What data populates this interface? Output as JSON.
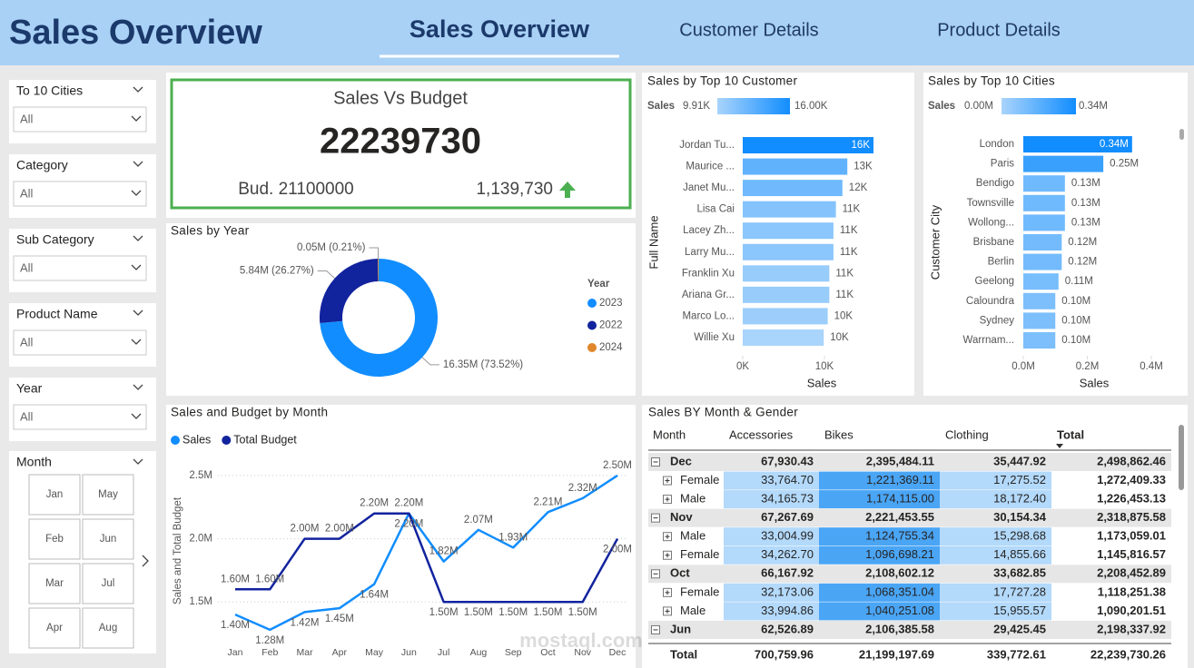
{
  "header": {
    "title": "Sales Overview",
    "tabs": [
      "Sales Overview",
      "Customer Details",
      "Product Details"
    ],
    "active_tab": 0
  },
  "slicers": [
    {
      "label": "To 10 Cities",
      "value": "All"
    },
    {
      "label": "Category",
      "value": "All"
    },
    {
      "label": "Sub Category",
      "value": "All"
    },
    {
      "label": "Product Name",
      "value": "All"
    },
    {
      "label": "Year",
      "value": "All"
    }
  ],
  "month_slicer": {
    "label": "Month",
    "options": [
      "Jan",
      "May",
      "Feb",
      "Jun",
      "Mar",
      "Jul",
      "Apr",
      "Aug"
    ]
  },
  "card": {
    "title": "Sales Vs Budget",
    "value": 22239730,
    "budget": "Bud. 21100000",
    "variance": "1,139,730"
  },
  "chart_data": [
    {
      "type": "donut",
      "title": "Sales by Year",
      "legend_title": "Year",
      "categories": [
        "2023",
        "2022",
        "2024"
      ],
      "values": [
        16.35,
        5.84,
        0.05
      ],
      "value_labels": [
        "16.35M (73.52%)",
        "5.84M (26.27%)",
        "0.05M (0.21%)"
      ],
      "colors": [
        "#118dff",
        "#12239e",
        "#e0862b"
      ]
    },
    {
      "type": "bar",
      "orientation": "horizontal",
      "title": "Sales by Top 10 Customer",
      "x_label": "Sales",
      "y_label": "Full Name",
      "categories": [
        "Jordan Tu...",
        "Maurice ...",
        "Janet Mu...",
        "Lisa Cai",
        "Lacey Zh...",
        "Larry Mu...",
        "Franklin Xu",
        "Ariana Gr...",
        "Marco Lo...",
        "Willie Xu"
      ],
      "values": [
        16.0,
        12.8,
        12.2,
        11.4,
        11.1,
        11.1,
        10.6,
        10.6,
        10.4,
        9.91
      ],
      "value_labels": [
        "16K",
        "13K",
        "12K",
        "11K",
        "11K",
        "11K",
        "11K",
        "11K",
        "10K",
        "10K"
      ],
      "xlim": [
        0,
        18
      ],
      "xticks": [
        {
          "value": 0,
          "label": "0K"
        },
        {
          "value": 10,
          "label": "10K"
        }
      ],
      "color_scale": {
        "title": "Sales",
        "min": {
          "value": 9.91,
          "label": "9.91K"
        },
        "max": {
          "value": 16,
          "label": "16.00K"
        },
        "colors": [
          "#a9d4fb",
          "#118dff"
        ]
      }
    },
    {
      "type": "bar",
      "orientation": "horizontal",
      "title": "Sales by Top 10 Cities",
      "x_label": "Sales",
      "y_label": "Customer City",
      "categories": [
        "London",
        "Paris",
        "Bendigo",
        "Townsville",
        "Wollong...",
        "Brisbane",
        "Berlin",
        "Geelong",
        "Caloundra",
        "Sydney",
        "Warrnam..."
      ],
      "values": [
        0.34,
        0.25,
        0.13,
        0.13,
        0.13,
        0.12,
        0.12,
        0.11,
        0.1,
        0.1,
        0.1
      ],
      "value_labels": [
        "0.34M",
        "0.25M",
        "0.13M",
        "0.13M",
        "0.13M",
        "0.12M",
        "0.12M",
        "0.11M",
        "0.10M",
        "0.10M",
        "0.10M"
      ],
      "xlim": [
        0,
        0.4
      ],
      "xticks": [
        {
          "value": 0,
          "label": "0.0M"
        },
        {
          "value": 0.2,
          "label": "0.2M"
        },
        {
          "value": 0.4,
          "label": "0.4M"
        }
      ],
      "color_scale": {
        "title": "Sales",
        "min": {
          "value": 0,
          "label": "0.00M"
        },
        "max": {
          "value": 0.34,
          "label": "0.34M"
        },
        "colors": [
          "#a9d4fb",
          "#118dff"
        ]
      }
    },
    {
      "type": "line",
      "title": "Sales and Budget by Month",
      "y_label": "Sales and Total Budget",
      "categories": [
        "Jan",
        "Feb",
        "Mar",
        "Apr",
        "May",
        "Jun",
        "Jul",
        "Aug",
        "Sep",
        "Oct",
        "Nov",
        "Dec"
      ],
      "series": [
        {
          "name": "Sales",
          "color": "#118dff",
          "values": [
            1.4,
            1.28,
            1.42,
            1.45,
            1.64,
            2.2,
            1.82,
            2.07,
            1.93,
            2.21,
            2.32,
            2.5
          ],
          "value_labels": [
            "1.40M",
            "1.28M",
            "1.42M",
            "1.45M",
            "1.64M",
            "2.20M",
            "1.82M",
            "2.07M",
            "1.93M",
            "2.21M",
            "2.32M",
            "2.50M"
          ]
        },
        {
          "name": "Total Budget",
          "color": "#12239e",
          "values": [
            1.6,
            1.6,
            2.0,
            2.0,
            2.2,
            2.2,
            1.5,
            1.5,
            1.5,
            1.5,
            1.5,
            2.0
          ],
          "value_labels": [
            "1.60M",
            "1.60M",
            "2.00M",
            "2.00M",
            "2.20M",
            "2.20M",
            "1.50M",
            "1.50M",
            "1.50M",
            "1.50M",
            "1.50M",
            "2.00M"
          ]
        }
      ],
      "ylim": [
        1.2,
        2.6
      ],
      "yticks": [
        {
          "value": 1.5,
          "label": "1.5M"
        },
        {
          "value": 2.0,
          "label": "2.0M"
        },
        {
          "value": 2.5,
          "label": "2.5M"
        }
      ],
      "grid": true
    }
  ],
  "matrix": {
    "title": "Sales BY Month & Gender",
    "columns": [
      "Month",
      "Accessories",
      "Bikes",
      "Clothing",
      "Total"
    ],
    "rows": [
      {
        "label": "Dec",
        "cells": [
          "67,930.43",
          "2,395,484.11",
          "35,447.92",
          "2,498,862.46"
        ],
        "children": [
          {
            "label": "Female",
            "cells": [
              "33,764.70",
              "1,221,369.11",
              "17,275.52",
              "1,272,409.33"
            ]
          },
          {
            "label": "Male",
            "cells": [
              "34,165.73",
              "1,174,115.00",
              "18,172.40",
              "1,226,453.13"
            ]
          }
        ]
      },
      {
        "label": "Nov",
        "cells": [
          "67,267.69",
          "2,221,453.55",
          "30,154.34",
          "2,318,875.58"
        ],
        "children": [
          {
            "label": "Male",
            "cells": [
              "33,004.99",
              "1,124,755.34",
              "15,298.68",
              "1,173,059.01"
            ]
          },
          {
            "label": "Female",
            "cells": [
              "34,262.70",
              "1,096,698.21",
              "14,855.66",
              "1,145,816.57"
            ]
          }
        ]
      },
      {
        "label": "Oct",
        "cells": [
          "66,167.92",
          "2,108,602.12",
          "33,682.85",
          "2,208,452.89"
        ],
        "children": [
          {
            "label": "Female",
            "cells": [
              "32,173.06",
              "1,068,351.04",
              "17,727.28",
              "1,118,251.38"
            ]
          },
          {
            "label": "Male",
            "cells": [
              "33,994.86",
              "1,040,251.08",
              "15,955.57",
              "1,090,201.51"
            ]
          }
        ]
      },
      {
        "label": "Jun",
        "cells": [
          "62,526.89",
          "2,106,385.58",
          "29,425.45",
          "2,198,337.92"
        ],
        "children": []
      }
    ],
    "total": {
      "label": "Total",
      "cells": [
        "700,759.96",
        "21,199,197.69",
        "339,772.61",
        "22,239,730.26"
      ]
    }
  },
  "watermark": "mostaql.com"
}
